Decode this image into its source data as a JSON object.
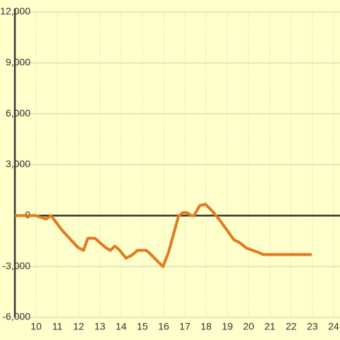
{
  "chart_data": {
    "type": "line",
    "x": [
      9.0,
      9.97,
      10.47,
      10.7,
      10.9,
      11.23,
      11.63,
      11.97,
      12.23,
      12.43,
      12.77,
      13.03,
      13.3,
      13.5,
      13.7,
      13.9,
      14.23,
      14.5,
      14.77,
      15.17,
      15.3,
      15.57,
      15.97,
      16.23,
      16.7,
      16.9,
      17.1,
      17.3,
      17.43,
      17.7,
      17.97,
      18.3,
      18.63,
      18.97,
      19.3,
      19.57,
      19.9,
      20.37,
      20.7,
      22.97
    ],
    "series": [
      {
        "name": null,
        "color": "#e07b20",
        "values": [
          0,
          0,
          -200,
          0,
          -330,
          -880,
          -1420,
          -1880,
          -2050,
          -1340,
          -1340,
          -1630,
          -1920,
          -2050,
          -1800,
          -2000,
          -2510,
          -2340,
          -2050,
          -2050,
          -2170,
          -2510,
          -3010,
          -2170,
          -40,
          170,
          170,
          0,
          0,
          590,
          670,
          250,
          -250,
          -840,
          -1420,
          -1590,
          -1920,
          -2130,
          -2300,
          -2300
        ]
      }
    ],
    "xlim": [
      9,
      24.3
    ],
    "xticks": [
      10,
      11,
      12,
      13,
      14,
      15,
      16,
      17,
      18,
      19,
      20,
      21,
      22,
      23,
      24
    ],
    "ylim": [
      -6000,
      12000
    ],
    "yticks": [
      {
        "value": -6000,
        "label": "-6,000"
      },
      {
        "value": -3000,
        "label": "-3,000"
      },
      0,
      {
        "value": 3000,
        "label": "3,000"
      },
      {
        "value": 6000,
        "label": "6,000"
      },
      {
        "value": 9000,
        "label": "9,000"
      },
      {
        "value": 12000,
        "label": "12,000"
      }
    ],
    "grid": true
  }
}
